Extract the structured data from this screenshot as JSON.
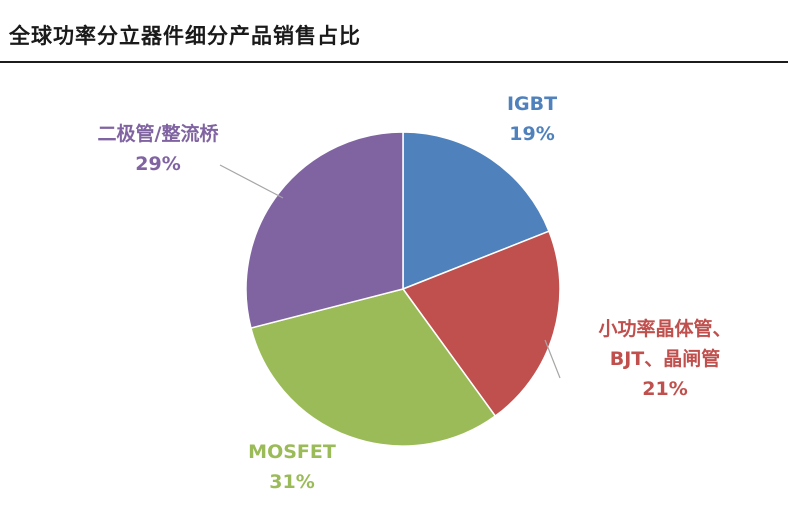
{
  "title": "全球功率分立器件细分产品销售占比",
  "chart_data": {
    "type": "pie",
    "title": "全球功率分立器件细分产品销售占比",
    "start_angle_deg": 0,
    "direction": "clockwise",
    "slices": [
      {
        "name": "IGBT",
        "name_lines": [
          "IGBT"
        ],
        "value": 19,
        "label": "19%",
        "color": "#4f81bd"
      },
      {
        "name": "小功率晶体管、BJT、晶闸管",
        "name_lines": [
          "小功率晶体管、",
          "BJT、晶闸管"
        ],
        "value": 21,
        "label": "21%",
        "color": "#c0504d"
      },
      {
        "name": "MOSFET",
        "name_lines": [
          "MOSFET"
        ],
        "value": 31,
        "label": "31%",
        "color": "#9bbb59"
      },
      {
        "name": "二极管/整流桥",
        "name_lines": [
          "二极管/整流桥"
        ],
        "value": 29,
        "label": "29%",
        "color": "#8064a2"
      }
    ]
  }
}
